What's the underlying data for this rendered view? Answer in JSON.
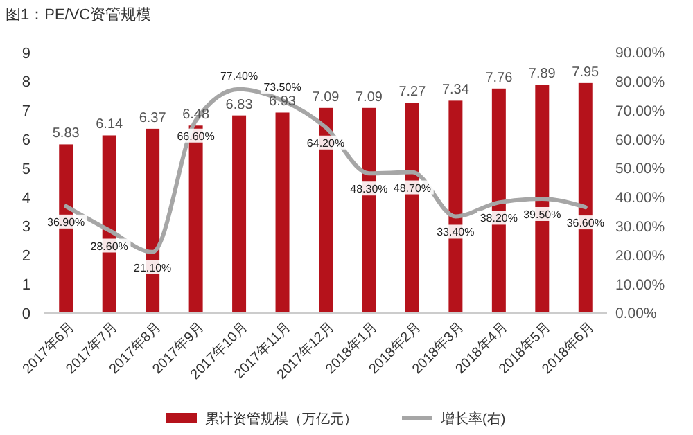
{
  "chart_data": {
    "type": "bar",
    "title": "图1：PE/VC资管规模",
    "categories": [
      "2017年6月",
      "2017年7月",
      "2017年8月",
      "2017年9月",
      "2017年10月",
      "2017年11月",
      "2017年12月",
      "2018年1月",
      "2018年2月",
      "2018年3月",
      "2018年4月",
      "2018年5月",
      "2018年6月"
    ],
    "series": [
      {
        "name": "累计资管规模（万亿元）",
        "color": "#b5121b",
        "values": [
          5.83,
          6.14,
          6.37,
          6.48,
          6.83,
          6.93,
          7.09,
          7.09,
          7.27,
          7.34,
          7.76,
          7.89,
          7.95
        ]
      },
      {
        "name": "增长率(右)",
        "type": "line",
        "axis": "y2",
        "color": "#a6a6a6",
        "values": [
          36.9,
          28.6,
          21.1,
          66.6,
          77.4,
          73.5,
          64.2,
          48.3,
          48.7,
          33.4,
          38.2,
          39.5,
          36.6
        ],
        "value_labels": [
          "36.90%",
          "28.60%",
          "21.10%",
          "66.60%",
          "77.40%",
          "73.50%",
          "64.20%",
          "48.30%",
          "48.70%",
          "33.40%",
          "38.20%",
          "39.50%",
          "36.60%"
        ]
      }
    ],
    "data_labels": true,
    "ylim": [
      0,
      9
    ],
    "yticks": [
      0,
      1,
      2,
      3,
      4,
      5,
      6,
      7,
      8,
      9
    ],
    "y2lim": [
      0,
      90
    ],
    "y2ticks": [
      {
        "value": 0,
        "label": "0.00%"
      },
      {
        "value": 10,
        "label": "10.00%"
      },
      {
        "value": 20,
        "label": "20.00%"
      },
      {
        "value": 30,
        "label": "30.00%"
      },
      {
        "value": 40,
        "label": "40.00%"
      },
      {
        "value": 50,
        "label": "50.00%"
      },
      {
        "value": 60,
        "label": "60.00%"
      },
      {
        "value": 70,
        "label": "70.00%"
      },
      {
        "value": 80,
        "label": "80.00%"
      },
      {
        "value": 90,
        "label": "90.00%"
      }
    ],
    "grid": false,
    "legend": "bottom"
  }
}
